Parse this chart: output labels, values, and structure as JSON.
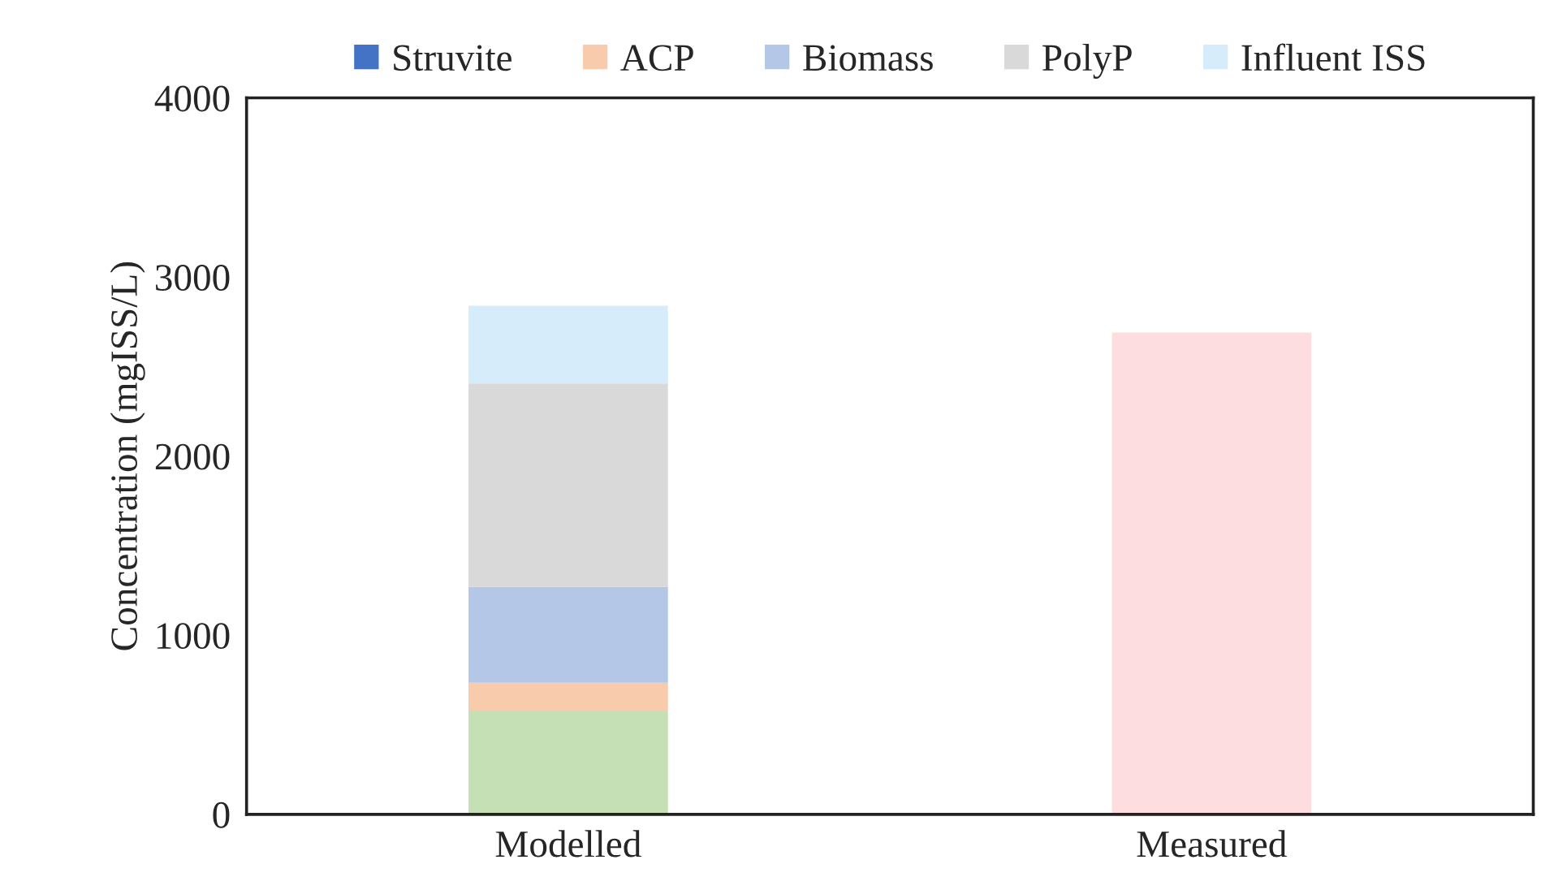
{
  "chart_data": {
    "type": "bar",
    "stacked": true,
    "ylabel": "Concentration (mgISS/L)",
    "categories": [
      "Modelled",
      "Measured"
    ],
    "series": [
      {
        "color": "#c5e0b4",
        "values": [
          580,
          null
        ]
      },
      {
        "name": "Struvite",
        "color": "#4472c4",
        "values": [
          0,
          null
        ]
      },
      {
        "name": "ACP",
        "color": "#f8cbad",
        "values": [
          155,
          null
        ]
      },
      {
        "name": "Biomass",
        "color": "#b4c7e7",
        "values": [
          535,
          null
        ]
      },
      {
        "name": "PolyP",
        "color": "#d9d9d9",
        "values": [
          1135,
          null
        ]
      },
      {
        "name": "Influent ISS",
        "color": "#d6ecfb",
        "values": [
          435,
          null
        ]
      },
      {
        "color": "#fdddE0",
        "values": [
          null,
          2690
        ]
      }
    ],
    "ylim": [
      0,
      4000
    ],
    "yticks": [
      0,
      1000,
      2000,
      3000,
      4000
    ],
    "grid": false,
    "legend": "top"
  }
}
